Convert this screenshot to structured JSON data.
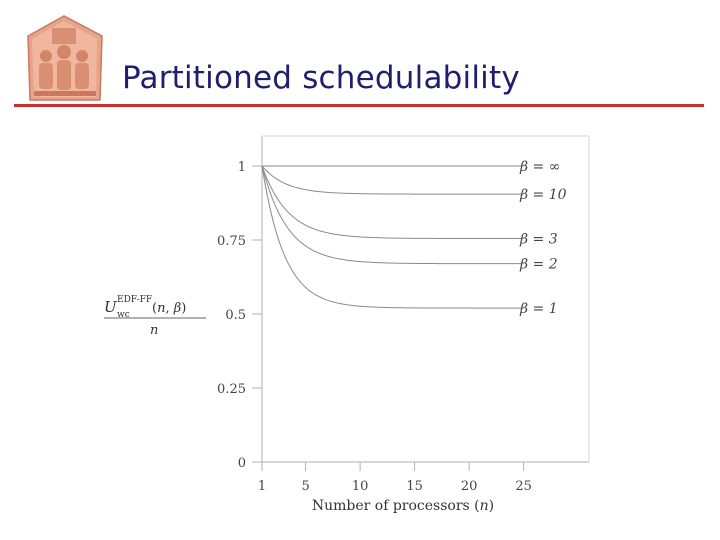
{
  "slide": {
    "title": "Partitioned schedulability"
  },
  "colors": {
    "title_text": "#1f1f6e",
    "title_rule": "#c9302c",
    "curve": "#8a8a8a",
    "axis": "#b0b0b0",
    "logo_fill": "#e8a48a"
  },
  "icons": {
    "logo": "carved-relief-logo-icon"
  },
  "chart_data": {
    "type": "line",
    "title": "",
    "xlabel": "Number of processors (n)",
    "ylabel": "U_wc^{EDF-FF}(n, β) / n",
    "xlim": [
      1,
      31
    ],
    "ylim": [
      0,
      1
    ],
    "xticks": [
      1,
      5,
      10,
      15,
      20,
      25
    ],
    "yticks": [
      0,
      0.25,
      0.5,
      0.75,
      1
    ],
    "ytick_labels": [
      "0",
      "0.25",
      "0.5",
      "0.75",
      "1"
    ],
    "grid": false,
    "legend": "inline-right",
    "series": [
      {
        "name": "β = ∞",
        "beta": null,
        "label": "β = ∞",
        "x": [
          1,
          25
        ],
        "y": [
          1,
          1
        ]
      },
      {
        "name": "β = 10",
        "beta": 10,
        "label": "β = 10",
        "x": [
          1,
          5,
          10,
          20,
          25
        ],
        "y": [
          1,
          0.92,
          0.91,
          0.905,
          0.905
        ]
      },
      {
        "name": "β = 3",
        "beta": 3,
        "label": "β = 3",
        "x": [
          1,
          5,
          10,
          20,
          25
        ],
        "y": [
          1,
          0.8,
          0.77,
          0.76,
          0.755
        ]
      },
      {
        "name": "β = 2",
        "beta": 2,
        "label": "β = 2",
        "x": [
          1,
          5,
          10,
          20,
          25
        ],
        "y": [
          1,
          0.73,
          0.69,
          0.675,
          0.67
        ]
      },
      {
        "name": "β = 1",
        "beta": 1,
        "label": "β = 1",
        "x": [
          1,
          5,
          10,
          20,
          25
        ],
        "y": [
          1,
          0.59,
          0.55,
          0.525,
          0.52
        ]
      }
    ]
  }
}
